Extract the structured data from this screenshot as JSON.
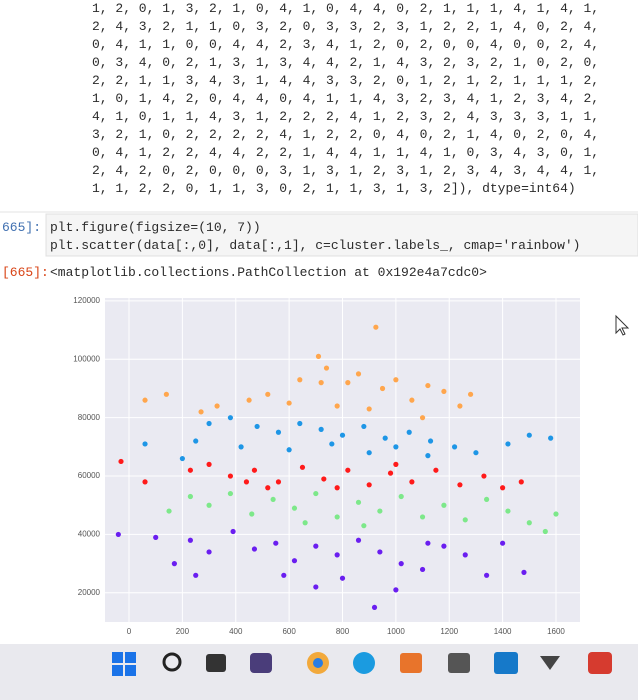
{
  "notebook": {
    "array_lines": [
      "1, 2, 0, 1, 3, 2, 1, 0, 4, 1, 0, 4, 4, 0, 2, 1, 1, 1, 4, 1, 4, 1,",
      "2, 4, 3, 2, 1, 1, 0, 3, 2, 0, 3, 3, 2, 3, 1, 2, 2, 1, 4, 0, 2, 4,",
      "0, 4, 1, 1, 0, 0, 4, 4, 2, 3, 4, 1, 2, 0, 2, 0, 0, 4, 0, 0, 2, 4,",
      "0, 3, 4, 0, 2, 1, 3, 1, 3, 4, 4, 2, 1, 4, 3, 2, 3, 2, 1, 0, 2, 0,",
      "2, 2, 1, 1, 3, 4, 3, 1, 4, 4, 3, 3, 2, 0, 1, 2, 1, 2, 1, 1, 1, 2,",
      "1, 0, 1, 4, 2, 0, 4, 4, 0, 4, 1, 1, 4, 3, 2, 3, 4, 1, 2, 3, 4, 2,",
      "4, 1, 0, 1, 1, 4, 3, 1, 2, 2, 2, 4, 1, 2, 3, 2, 4, 3, 3, 3, 1, 1,",
      "3, 2, 1, 0, 2, 2, 2, 2, 4, 1, 2, 2, 0, 4, 0, 2, 1, 4, 0, 2, 0, 4,",
      "0, 4, 1, 2, 2, 4, 4, 2, 2, 1, 4, 4, 1, 1, 4, 1, 0, 3, 4, 3, 0, 1,",
      "2, 4, 2, 0, 2, 0, 0, 0, 3, 1, 3, 1, 2, 3, 1, 2, 3, 4, 3, 4, 4, 1,",
      "1, 1, 2, 2, 0, 1, 1, 3, 0, 2, 1, 1, 3, 1, 3, 2]), dtype=int64)"
    ],
    "code_prompt": "665]:",
    "code_lines": [
      "plt.figure(figsize=(10, 7))",
      "plt.scatter(data[:,0], data[:,1], c=cluster.labels_, cmap='rainbow')"
    ],
    "output_prompt": "[665]:",
    "output_text": "<matplotlib.collections.PathCollection at 0x192e4a7cdc0>"
  },
  "chart_data": {
    "type": "scatter",
    "grid": true,
    "xlim": [
      -90,
      1690
    ],
    "ylim": [
      10000,
      121000
    ],
    "xticks": [
      0,
      200,
      400,
      600,
      800,
      1000,
      1200,
      1400,
      1600
    ],
    "yticks": [
      20000,
      40000,
      60000,
      80000,
      100000,
      120000
    ],
    "series": [
      {
        "color": "#ffa64d",
        "x": [
          925,
          710,
          740,
          720,
          640,
          820,
          860,
          950,
          1000,
          1120,
          1180,
          1280,
          520,
          450,
          330,
          140,
          60,
          270,
          600,
          900,
          1060,
          1240,
          1100,
          780
        ],
        "values": [
          111000,
          101000,
          97000,
          92000,
          93000,
          92000,
          95000,
          90000,
          93000,
          91000,
          89000,
          88000,
          88000,
          86000,
          84000,
          88000,
          86000,
          82000,
          85000,
          83000,
          86000,
          84000,
          80000,
          84000
        ]
      },
      {
        "color": "#1e96e6",
        "x": [
          300,
          380,
          480,
          560,
          640,
          720,
          800,
          880,
          960,
          1050,
          1130,
          1220,
          1300,
          1420,
          1500,
          1580,
          250,
          420,
          600,
          760,
          900,
          1000,
          1120,
          200,
          60
        ],
        "values": [
          78000,
          80000,
          77000,
          75000,
          78000,
          76000,
          74000,
          77000,
          73000,
          75000,
          72000,
          70000,
          68000,
          71000,
          74000,
          73000,
          72000,
          70000,
          69000,
          71000,
          68000,
          70000,
          67000,
          66000,
          71000
        ]
      },
      {
        "color": "#ff1a1a",
        "x": [
          -30,
          60,
          230,
          300,
          380,
          470,
          560,
          650,
          730,
          820,
          900,
          980,
          1060,
          1150,
          1240,
          1330,
          1400,
          1470,
          520,
          780,
          1000,
          440
        ],
        "values": [
          65000,
          58000,
          62000,
          64000,
          60000,
          62000,
          58000,
          63000,
          59000,
          62000,
          57000,
          61000,
          58000,
          62000,
          57000,
          60000,
          56000,
          58000,
          56000,
          56000,
          64000,
          58000
        ]
      },
      {
        "color": "#7de88a",
        "x": [
          150,
          230,
          300,
          380,
          460,
          540,
          620,
          700,
          780,
          860,
          940,
          1020,
          1100,
          1180,
          1260,
          1340,
          1420,
          1500,
          1560,
          1600,
          660,
          880
        ],
        "values": [
          48000,
          53000,
          50000,
          54000,
          47000,
          52000,
          49000,
          54000,
          46000,
          51000,
          48000,
          53000,
          46000,
          50000,
          45000,
          52000,
          48000,
          44000,
          41000,
          47000,
          44000,
          43000
        ]
      },
      {
        "color": "#6a1ef0",
        "x": [
          -40,
          100,
          170,
          230,
          300,
          390,
          470,
          550,
          620,
          700,
          780,
          860,
          940,
          1020,
          1100,
          1180,
          1260,
          1340,
          1480,
          700,
          920,
          580,
          800,
          1000,
          250,
          1120,
          1400
        ],
        "values": [
          40000,
          39000,
          30000,
          38000,
          34000,
          41000,
          35000,
          37000,
          31000,
          36000,
          33000,
          38000,
          34000,
          30000,
          28000,
          36000,
          33000,
          26000,
          27000,
          22000,
          15000,
          26000,
          25000,
          21000,
          26000,
          37000,
          37000
        ]
      }
    ]
  }
}
